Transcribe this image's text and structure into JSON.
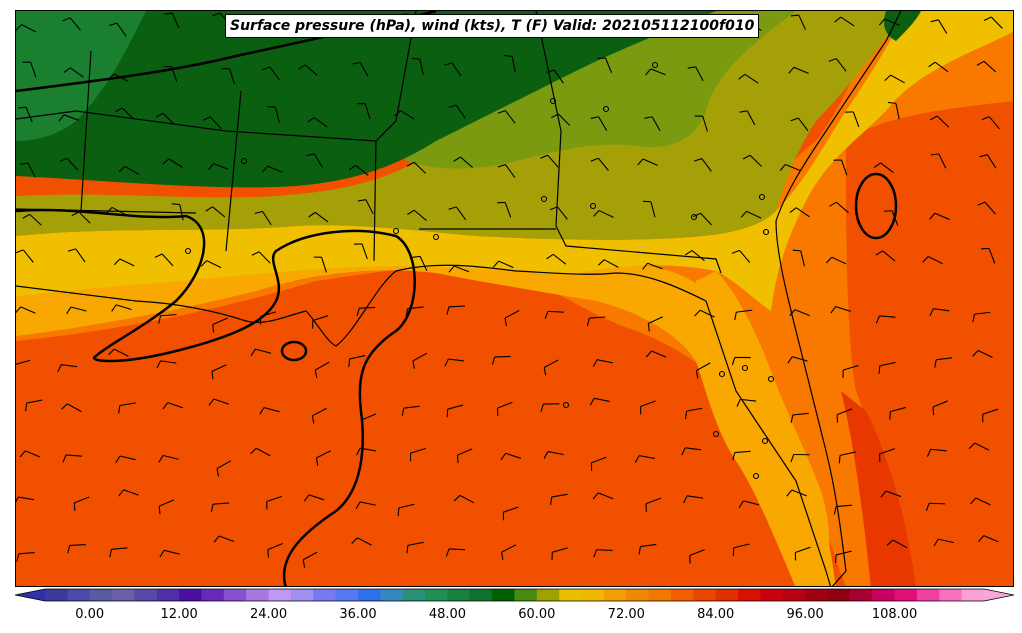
{
  "title": "Surface pressure (hPa), wind (kts), T (F) Valid: 202105112100f010",
  "colorbar": {
    "tick_labels": [
      "0.00",
      "12.00",
      "24.00",
      "36.00",
      "48.00",
      "60.00",
      "72.00",
      "84.00",
      "96.00",
      "108.00"
    ],
    "tick_values": [
      0,
      12,
      24,
      36,
      48,
      60,
      72,
      84,
      96,
      108
    ],
    "range": [
      -6,
      120
    ],
    "colors": [
      "#3a3a9a",
      "#4a4aa8",
      "#5a5aa0",
      "#6a5fa8",
      "#5a48a8",
      "#5030a8",
      "#4a10a0",
      "#6a28b8",
      "#8a50d0",
      "#a878e0",
      "#c098f0",
      "#a090f0",
      "#7878f0",
      "#5878f0",
      "#3070e8",
      "#3888c0",
      "#2a9078",
      "#209050",
      "#188040",
      "#107030",
      "#006000",
      "#488a10",
      "#a0a000",
      "#e8c000",
      "#f0b800",
      "#f0a000",
      "#f08800",
      "#f07800",
      "#f06000",
      "#e84800",
      "#e03000",
      "#d81000",
      "#c80010",
      "#b80010",
      "#a00010",
      "#900010",
      "#a80030",
      "#c80060",
      "#e01078",
      "#f040a0",
      "#f870c0",
      "#f8a0d8"
    ]
  },
  "map": {
    "field": "Surface temperature (F) with pressure contours and wind barbs",
    "fill_colors": {
      "dark_green": "#0a6010",
      "mid_green": "#1a8030",
      "olive": "#7a9a10",
      "khaki": "#a6a008",
      "yellow": "#f0c000",
      "amber": "#f8a800",
      "orange": "#f87800",
      "red_orange": "#f05000",
      "red": "#e83800"
    }
  }
}
